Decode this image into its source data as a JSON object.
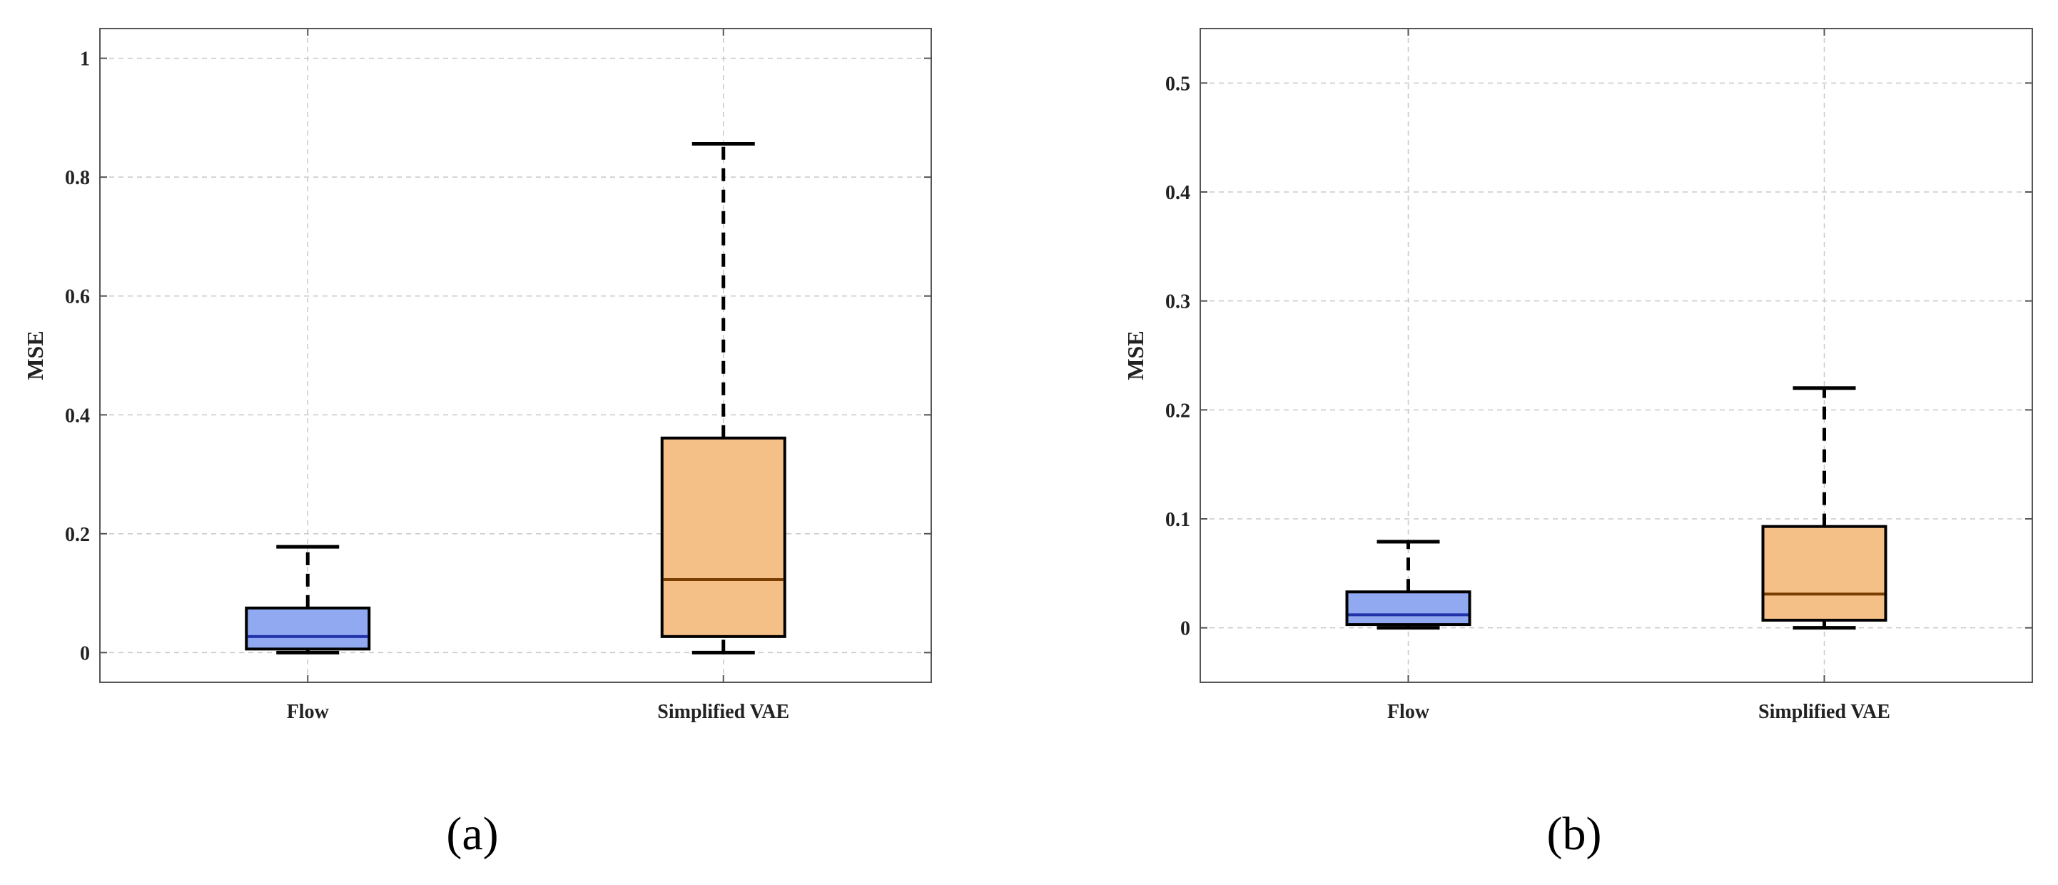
{
  "chart_data": [
    {
      "type": "box",
      "panel_label": "(a)",
      "ylabel": "MSE",
      "ylim": [
        -0.05,
        1.05
      ],
      "yticks": [
        0,
        0.2,
        0.4,
        0.6,
        0.8,
        1
      ],
      "ytick_labels": [
        "0",
        "0.2",
        "0.4",
        "0.6",
        "0.8",
        "1"
      ],
      "grid": true,
      "categories": [
        "Flow",
        "Simplified VAE"
      ],
      "boxes": [
        {
          "category": "Flow",
          "min": 0.0,
          "q1": 0.006,
          "median": 0.027,
          "q3": 0.075,
          "max": 0.178,
          "fill": "#90A9F0",
          "median_color": "#2233AA"
        },
        {
          "category": "Simplified VAE",
          "min": 0.0,
          "q1": 0.027,
          "median": 0.123,
          "q3": 0.361,
          "max": 0.856,
          "fill": "#F5BF88",
          "median_color": "#7A3E00"
        }
      ]
    },
    {
      "type": "box",
      "panel_label": "(b)",
      "ylabel": "MSE",
      "ylim": [
        -0.05,
        0.55
      ],
      "yticks": [
        0,
        0.1,
        0.2,
        0.3,
        0.4,
        0.5
      ],
      "ytick_labels": [
        "0",
        "0.1",
        "0.2",
        "0.3",
        "0.4",
        "0.5"
      ],
      "grid": true,
      "categories": [
        "Flow",
        "Simplified VAE"
      ],
      "boxes": [
        {
          "category": "Flow",
          "min": 0.0,
          "q1": 0.003,
          "median": 0.012,
          "q3": 0.033,
          "max": 0.079,
          "fill": "#90A9F0",
          "median_color": "#2233AA"
        },
        {
          "category": "Simplified VAE",
          "min": 0.0,
          "q1": 0.007,
          "median": 0.031,
          "q3": 0.093,
          "max": 0.22,
          "fill": "#F5BF88",
          "median_color": "#7A3E00"
        }
      ]
    }
  ]
}
